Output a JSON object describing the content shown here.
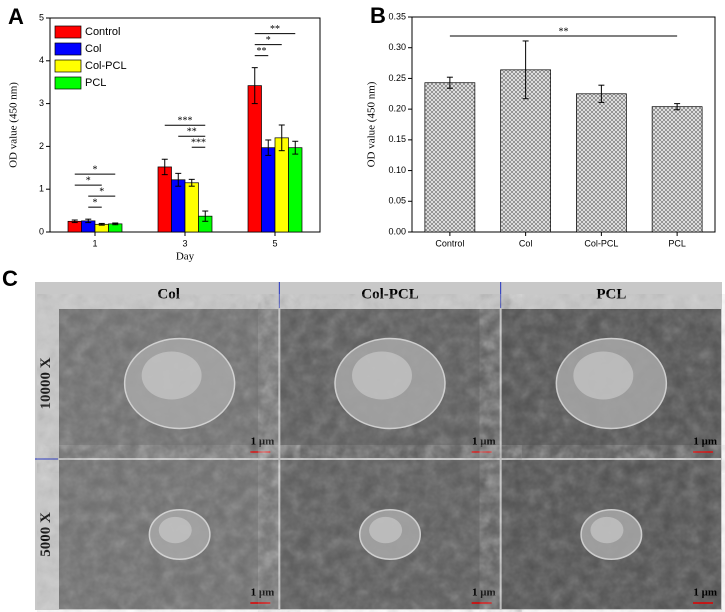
{
  "chart_data": [
    {
      "type": "bar",
      "panel": "A",
      "x_label": "Day",
      "y_label": "OD value (450 nm)",
      "categories": [
        "1",
        "3",
        "5"
      ],
      "series": [
        {
          "name": "Control",
          "color": "#ff0000",
          "values": [
            0.25,
            1.52,
            3.42
          ],
          "errors": [
            0.03,
            0.18,
            0.42
          ]
        },
        {
          "name": "Col",
          "color": "#0000ff",
          "values": [
            0.26,
            1.22,
            1.97
          ],
          "errors": [
            0.04,
            0.15,
            0.18
          ]
        },
        {
          "name": "Col-PCL",
          "color": "#ffff00",
          "values": [
            0.18,
            1.15,
            2.2
          ],
          "errors": [
            0.02,
            0.08,
            0.3
          ]
        },
        {
          "name": "PCL",
          "color": "#00ff00",
          "values": [
            0.19,
            0.37,
            1.97
          ],
          "errors": [
            0.02,
            0.12,
            0.15
          ]
        }
      ],
      "ylim": [
        0,
        5
      ],
      "yticks": [
        0,
        1,
        2,
        3,
        4,
        5
      ],
      "legend": "upper left",
      "annotations": [
        {
          "text": "*",
          "category": "1",
          "between": [
            "Control",
            "PCL"
          ]
        },
        {
          "text": "*",
          "category": "1",
          "between": [
            "Control",
            "Col-PCL"
          ]
        },
        {
          "text": "*",
          "category": "1",
          "between": [
            "Col",
            "PCL"
          ]
        },
        {
          "text": "*",
          "category": "1",
          "between": [
            "Col",
            "Col-PCL"
          ]
        },
        {
          "text": "***",
          "category": "3",
          "between": [
            "Control",
            "PCL"
          ]
        },
        {
          "text": "**",
          "category": "3",
          "between": [
            "Col",
            "PCL"
          ]
        },
        {
          "text": "***",
          "category": "3",
          "between": [
            "Col-PCL",
            "PCL"
          ]
        },
        {
          "text": "**",
          "category": "5",
          "between": [
            "Control",
            "PCL"
          ]
        },
        {
          "text": "*",
          "category": "5",
          "between": [
            "Control",
            "Col-PCL"
          ]
        },
        {
          "text": "**",
          "category": "5",
          "between": [
            "Control",
            "Col"
          ]
        }
      ]
    },
    {
      "type": "bar",
      "panel": "B",
      "y_label": "OD value (450 nm)",
      "categories": [
        "Control",
        "Col",
        "Col-PCL",
        "PCL"
      ],
      "values": [
        0.243,
        0.264,
        0.225,
        0.204
      ],
      "errors": [
        0.009,
        0.047,
        0.014,
        0.005
      ],
      "color": "#c8c8c8",
      "pattern": "crosshatch",
      "ylim": [
        0,
        0.35
      ],
      "yticks": [
        {
          "value": 0,
          "label": "0.00"
        },
        {
          "value": 0.05,
          "label": "0.05"
        },
        {
          "value": 0.1,
          "label": "0.10"
        },
        {
          "value": 0.15,
          "label": "0.15"
        },
        {
          "value": 0.2,
          "label": "0.20"
        },
        {
          "value": 0.25,
          "label": "0.25"
        },
        {
          "value": 0.3,
          "label": "0.30"
        },
        {
          "value": 0.35,
          "label": "0.35"
        }
      ],
      "annotations": [
        {
          "text": "**",
          "between": [
            "Control",
            "PCL"
          ]
        }
      ]
    }
  ],
  "panel_c": {
    "label": "C",
    "columns": [
      "Col",
      "Col-PCL",
      "PCL"
    ],
    "rows": [
      "10000 X",
      "5000 X"
    ],
    "scale_bar": "1 μm"
  }
}
